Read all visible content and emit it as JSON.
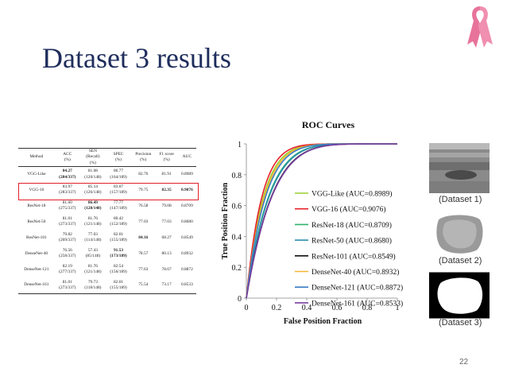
{
  "slide": {
    "title": "Dataset 3 results",
    "page_number": "22"
  },
  "table": {
    "headers": [
      "Method",
      "ACC\n(%)",
      "SEN\n(Recall)\n(%)",
      "SPEC\n(%)",
      "Precision\n(%)",
      "F1 score\n(%)",
      "AUC"
    ],
    "rows": [
      {
        "method": "VGG-Like",
        "acc": "84.27\n(284/337)",
        "sen": "81.08\n(120/148)",
        "spec": "86.77\n(164/189)",
        "precision": "82.76",
        "f1": "81.91",
        "auc": "0.8989",
        "bold": [
          "acc"
        ]
      },
      {
        "method": "VGG-16",
        "acc": "83.97\n(283/337)",
        "sen": "85.14\n(126/148)",
        "spec": "83.07\n(157/189)",
        "precision": "79.75",
        "f1": "82.35",
        "auc": "0.9076",
        "bold": [
          "f1",
          "auc"
        ]
      },
      {
        "method": "ResNet-18",
        "acc": "81.60\n(275/337)",
        "sen": "86.49\n(128/148)",
        "spec": "77.77\n(147/189)",
        "precision": "76.58",
        "f1": "79.08",
        "auc": "0.8709",
        "bold": [
          "sen"
        ]
      },
      {
        "method": "ResNet-50",
        "acc": "81.01\n(273/337)",
        "sen": "81.76\n(121/148)",
        "spec": "80.42\n(152/189)",
        "precision": "77.03",
        "f1": "77.03",
        "auc": "0.8680",
        "bold": []
      },
      {
        "method": "ResNet-101",
        "acc": "79.82\n(269/337)",
        "sen": "77.03\n(114/148)",
        "spec": "82.01\n(155/189)",
        "precision": "84.16",
        "f1": "68.27",
        "auc": "0.8549",
        "bold": [
          "precision"
        ]
      },
      {
        "method": "DenseNet-40",
        "acc": "76.56\n(258/337)",
        "sen": "57.43\n(85/148)",
        "spec": "91.53\n(173/189)",
        "precision": "78.57",
        "f1": "80.13",
        "auc": "0.8932",
        "bold": [
          "spec"
        ]
      },
      {
        "method": "DenseNet-121",
        "acc": "82.19\n(277/337)",
        "sen": "81.76\n(121/148)",
        "spec": "82.54\n(156/189)",
        "precision": "77.63",
        "f1": "78.67",
        "auc": "0.8872",
        "bold": []
      },
      {
        "method": "DenseNet-161",
        "acc": "81.01\n(273/337)",
        "sen": "79.73\n(118/148)",
        "spec": "82.01\n(155/189)",
        "precision": "75.54",
        "f1": "73.17",
        "auc": "0.8533",
        "bold": []
      }
    ]
  },
  "chart_data": {
    "type": "line",
    "title": "ROC Curves",
    "xlabel": "False Position Fraction",
    "ylabel": "True Position Fraction",
    "xlim": [
      0,
      1
    ],
    "ylim": [
      0,
      1
    ],
    "xticks": [
      "0",
      "0.2",
      "0.4",
      "0.6",
      "0.8",
      "1"
    ],
    "yticks": [
      "0",
      "0.2",
      "0.4",
      "0.6",
      "0.8",
      "1"
    ],
    "grid": false,
    "legend_position": "right",
    "series": [
      {
        "name": "VGG-Like (AUC=0.8989)",
        "auc": 0.8989,
        "color": "#9acd32"
      },
      {
        "name": "VGG-16 (AUC=0.9076)",
        "auc": 0.9076,
        "color": "#e8202a"
      },
      {
        "name": "ResNet-18 (AUC=0.8709)",
        "auc": 0.8709,
        "color": "#2fb36b"
      },
      {
        "name": "ResNet-50 (AUC=0.8680)",
        "auc": 0.868,
        "color": "#2b8fb0"
      },
      {
        "name": "ResNet-101 (AUC=0.8549)",
        "auc": 0.8549,
        "color": "#111111"
      },
      {
        "name": "DenseNet-40 (AUC=0.8932)",
        "auc": 0.8932,
        "color": "#f2b632"
      },
      {
        "name": "DenseNet-121 (AUC=0.8872)",
        "auc": 0.8872,
        "color": "#3a7cc4"
      },
      {
        "name": "DenseNet-161 (AUC=0.8533)",
        "auc": 0.8533,
        "color": "#7a3fa0"
      }
    ]
  },
  "thumbnails": [
    {
      "caption": "(Dataset 1)"
    },
    {
      "caption": "(Dataset 2)"
    },
    {
      "caption": "(Dataset 3)"
    }
  ]
}
